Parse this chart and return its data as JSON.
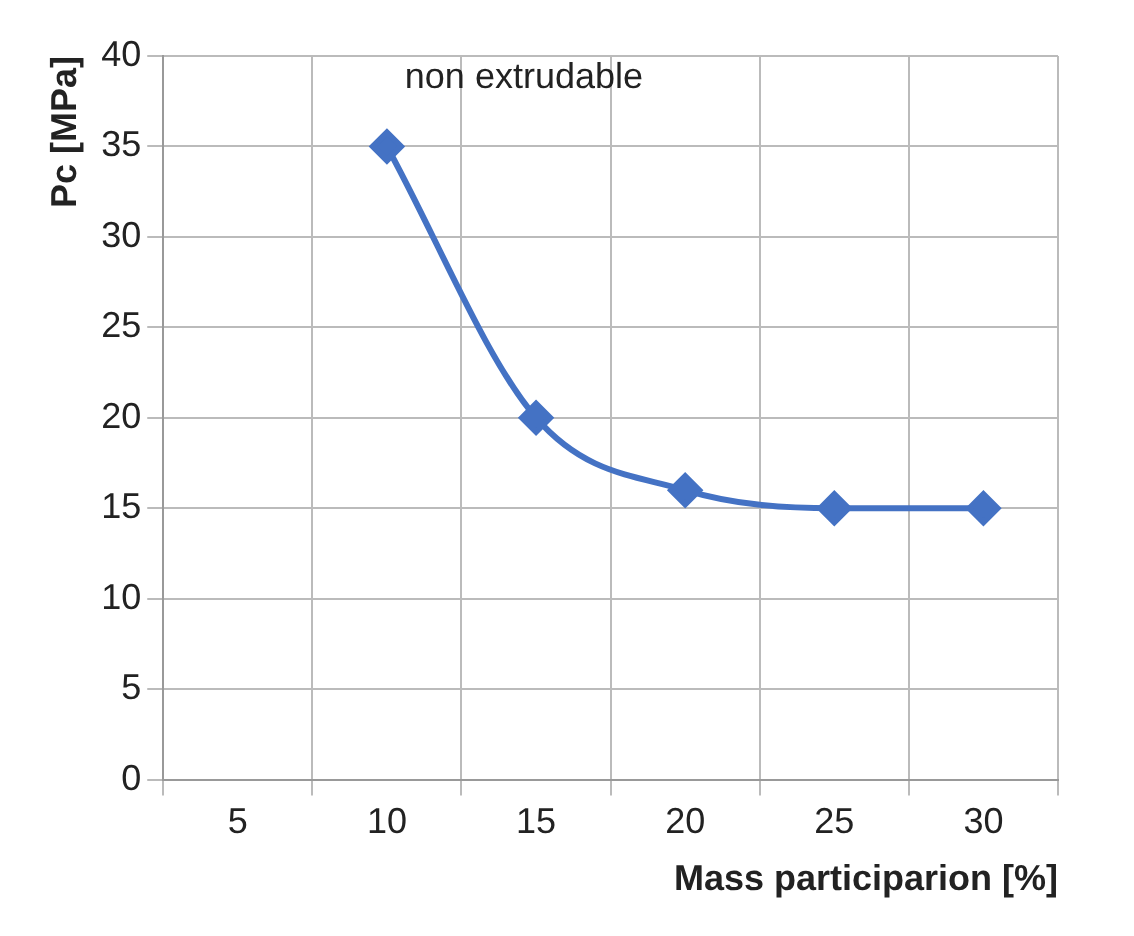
{
  "chart_data": {
    "type": "line",
    "xlabel": "Mass participarion [%]",
    "ylabel": "Pc [MPa]",
    "categories": [
      "5",
      "10",
      "15",
      "20",
      "25",
      "30"
    ],
    "series": [
      {
        "color": "#4472c4",
        "values": [
          null,
          35,
          20,
          16,
          15,
          15
        ]
      }
    ],
    "ylim": [
      0,
      40
    ],
    "yticks": [
      0,
      5,
      10,
      15,
      20,
      25,
      30,
      35,
      40
    ],
    "annotations": [
      "non extrudable"
    ],
    "grid": true,
    "legend": false,
    "marker": "diamond",
    "line_style": "solid"
  }
}
